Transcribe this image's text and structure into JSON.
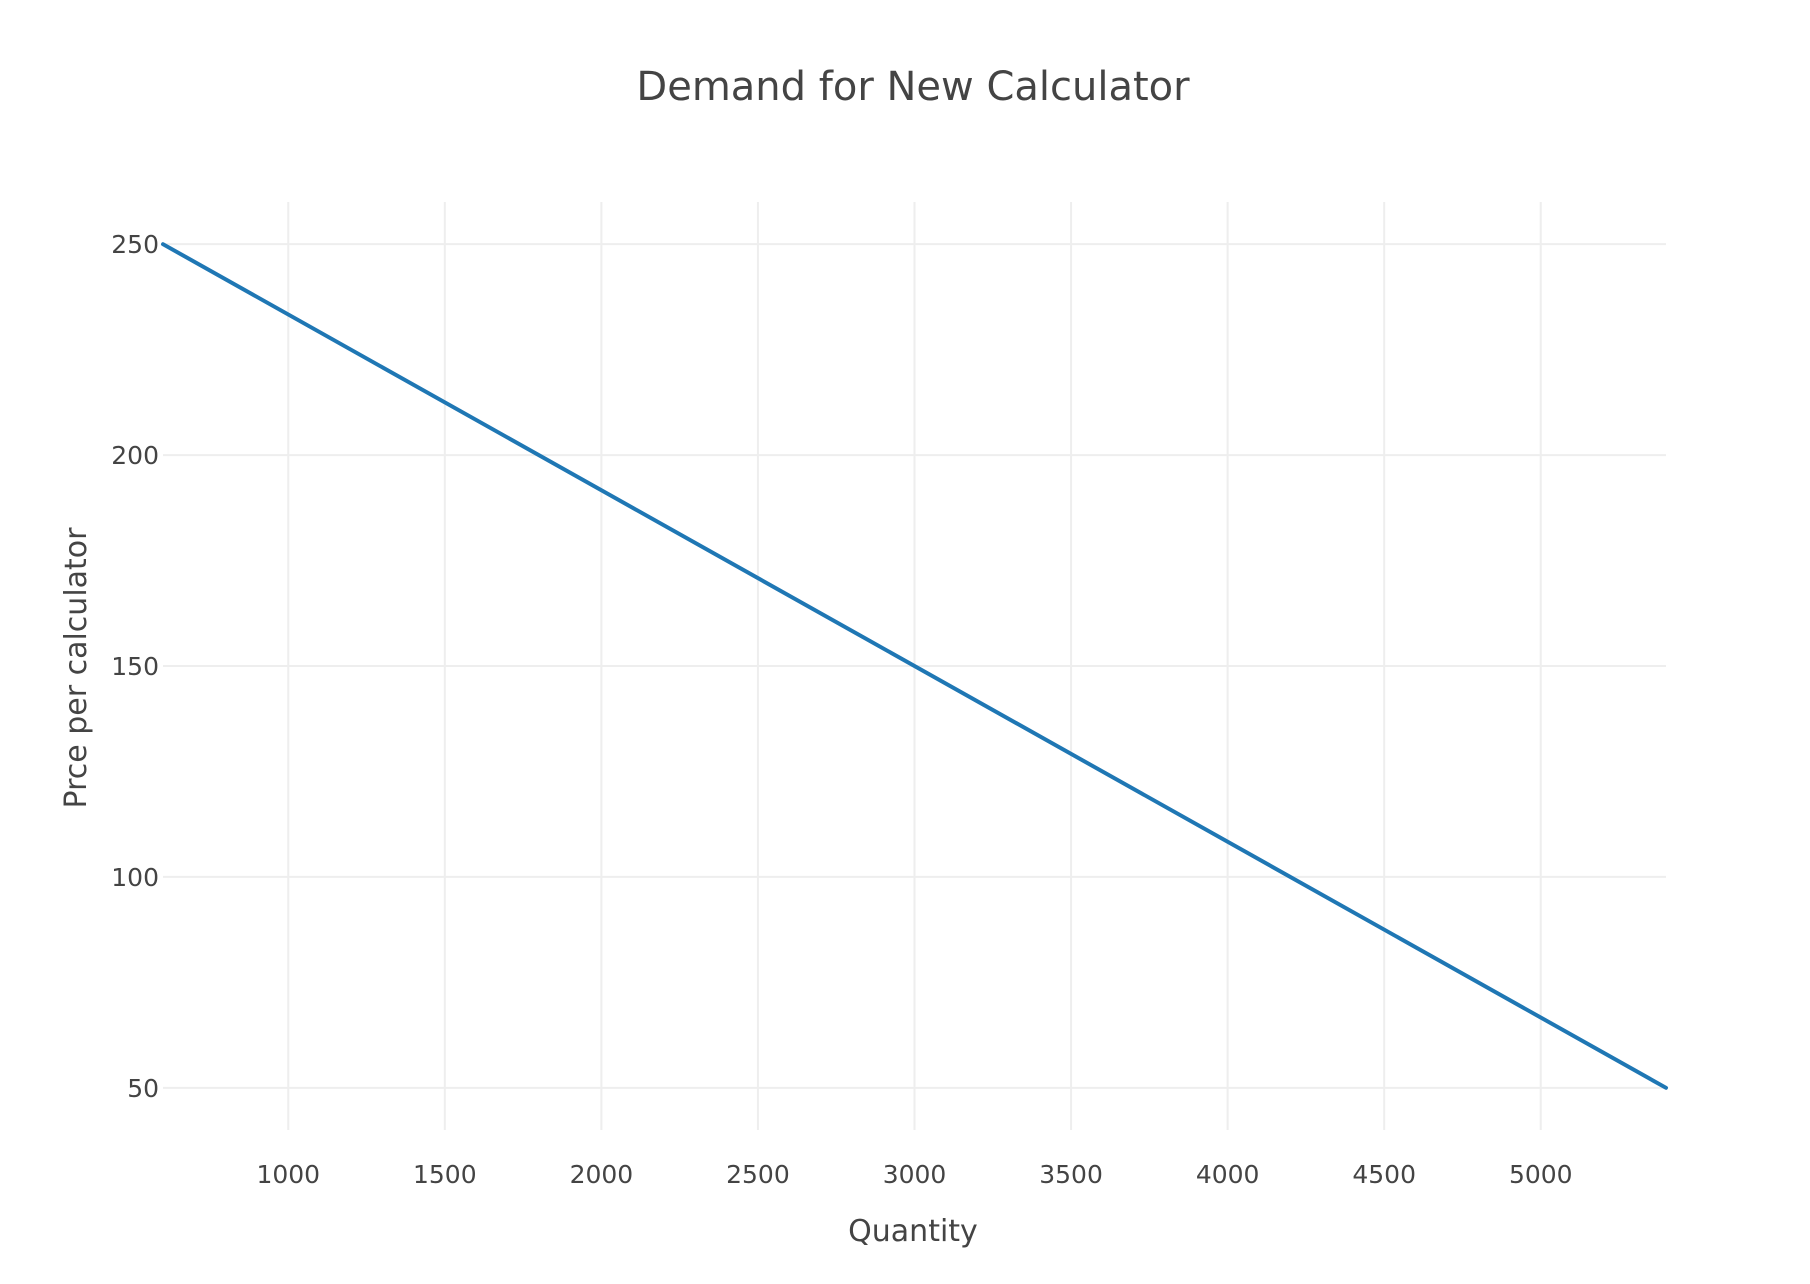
{
  "chart_data": {
    "type": "line",
    "title": "Demand for New Calculator",
    "xlabel": "Quantity",
    "ylabel": "Prce per calculator",
    "xlim": [
      600,
      5400
    ],
    "ylim": [
      40,
      260
    ],
    "x_ticks": [
      1000,
      1500,
      2000,
      2500,
      3000,
      3500,
      4000,
      4500,
      5000
    ],
    "y_ticks": [
      50,
      100,
      150,
      200,
      250
    ],
    "grid": true,
    "series": [
      {
        "x": [
          600,
          5400
        ],
        "y": [
          250,
          50
        ],
        "color": "#1f77b4"
      }
    ]
  }
}
